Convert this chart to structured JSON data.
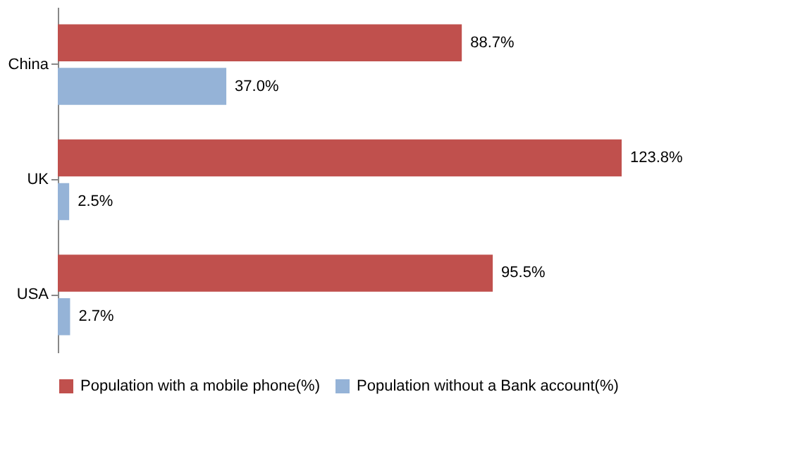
{
  "chart_data": {
    "type": "bar",
    "orientation": "horizontal",
    "categories": [
      "China",
      "UK",
      "USA"
    ],
    "legend": "bottom",
    "grid": false,
    "series": [
      {
        "name": "Population with a mobile phone(%)",
        "color": "#c0504d",
        "values": [
          88.7,
          123.8,
          95.5
        ],
        "value_labels": [
          "88.7%",
          "123.8%",
          "95.5%"
        ]
      },
      {
        "name": "Population without a Bank account(%)",
        "color": "#95b3d7",
        "values": [
          37.0,
          2.5,
          2.7
        ],
        "value_labels": [
          "37.0%",
          "2.5%",
          "2.7%"
        ]
      }
    ]
  }
}
